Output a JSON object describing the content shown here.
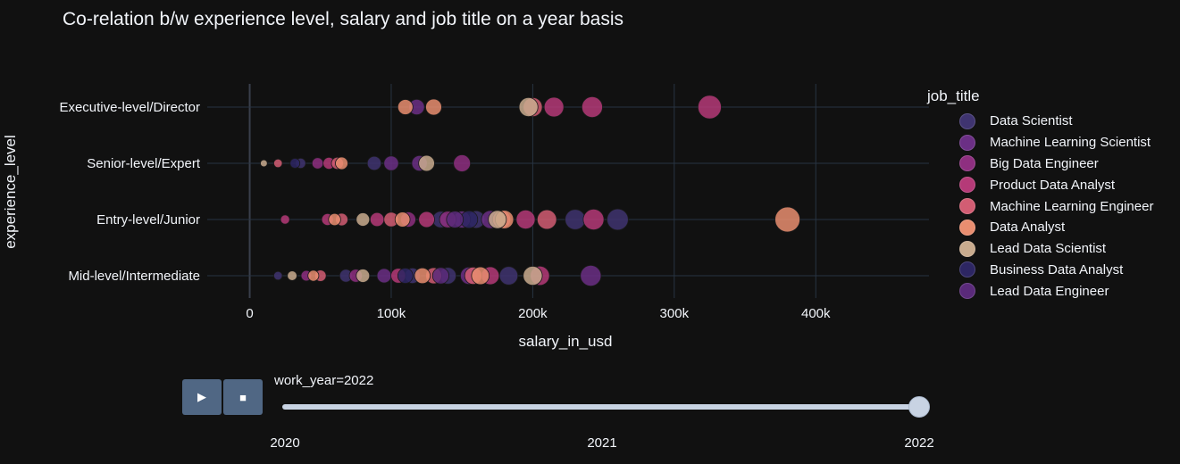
{
  "chart_data": {
    "type": "scatter",
    "title": "Co-relation b/w experience level, salary and job title on a year basis",
    "xlabel": "salary_in_usd",
    "ylabel": "experience_level",
    "xlim": [
      -30000,
      480000
    ],
    "x_ticks": [
      0,
      100000,
      200000,
      300000,
      400000
    ],
    "x_tick_labels": [
      "0",
      "100k",
      "200k",
      "300k",
      "400k"
    ],
    "categories": [
      "Executive-level/Director",
      "Senior-level/Expert",
      "Entry-level/Junior",
      "Mid-level/Intermediate"
    ],
    "grid": true,
    "legend_title": "job_title",
    "legend_position": "right",
    "series": [
      {
        "name": "Data Scientist",
        "color": "#3f3470",
        "points": [
          {
            "x": 36000,
            "y": "Senior-level/Expert"
          },
          {
            "x": 88000,
            "y": "Senior-level/Expert"
          },
          {
            "x": 135000,
            "y": "Entry-level/Junior"
          },
          {
            "x": 160000,
            "y": "Entry-level/Junior"
          },
          {
            "x": 230000,
            "y": "Entry-level/Junior"
          },
          {
            "x": 260000,
            "y": "Entry-level/Junior"
          },
          {
            "x": 20000,
            "y": "Mid-level/Intermediate"
          },
          {
            "x": 68000,
            "y": "Mid-level/Intermediate"
          },
          {
            "x": 115000,
            "y": "Mid-level/Intermediate"
          },
          {
            "x": 140000,
            "y": "Mid-level/Intermediate"
          },
          {
            "x": 183000,
            "y": "Mid-level/Intermediate"
          }
        ]
      },
      {
        "name": "Machine Learning Scientist",
        "color": "#6b2f85",
        "points": [
          {
            "x": 118000,
            "y": "Executive-level/Director"
          },
          {
            "x": 100000,
            "y": "Senior-level/Expert"
          },
          {
            "x": 120000,
            "y": "Senior-level/Expert"
          },
          {
            "x": 150000,
            "y": "Entry-level/Junior"
          },
          {
            "x": 170000,
            "y": "Entry-level/Junior"
          },
          {
            "x": 95000,
            "y": "Mid-level/Intermediate"
          },
          {
            "x": 155000,
            "y": "Mid-level/Intermediate"
          },
          {
            "x": 241000,
            "y": "Mid-level/Intermediate"
          }
        ]
      },
      {
        "name": "Big Data Engineer",
        "color": "#8e2f80",
        "points": [
          {
            "x": 150000,
            "y": "Senior-level/Expert"
          },
          {
            "x": 48000,
            "y": "Senior-level/Expert"
          },
          {
            "x": 112000,
            "y": "Entry-level/Junior"
          },
          {
            "x": 140000,
            "y": "Entry-level/Junior"
          },
          {
            "x": 40000,
            "y": "Mid-level/Intermediate"
          },
          {
            "x": 75000,
            "y": "Mid-level/Intermediate"
          }
        ]
      },
      {
        "name": "Product Data Analyst",
        "color": "#b53a78",
        "points": [
          {
            "x": 242000,
            "y": "Executive-level/Director"
          },
          {
            "x": 325000,
            "y": "Executive-level/Director"
          },
          {
            "x": 215000,
            "y": "Executive-level/Director"
          },
          {
            "x": 25000,
            "y": "Entry-level/Junior"
          },
          {
            "x": 55000,
            "y": "Entry-level/Junior"
          },
          {
            "x": 90000,
            "y": "Entry-level/Junior"
          },
          {
            "x": 125000,
            "y": "Entry-level/Junior"
          },
          {
            "x": 195000,
            "y": "Entry-level/Junior"
          },
          {
            "x": 243000,
            "y": "Entry-level/Junior"
          },
          {
            "x": 56000,
            "y": "Senior-level/Expert"
          },
          {
            "x": 105000,
            "y": "Mid-level/Intermediate"
          },
          {
            "x": 170000,
            "y": "Mid-level/Intermediate"
          },
          {
            "x": 205000,
            "y": "Mid-level/Intermediate"
          }
        ]
      },
      {
        "name": "Machine Learning Engineer",
        "color": "#d25d73",
        "points": [
          {
            "x": 200000,
            "y": "Executive-level/Director"
          },
          {
            "x": 20000,
            "y": "Senior-level/Expert"
          },
          {
            "x": 62000,
            "y": "Senior-level/Expert"
          },
          {
            "x": 65000,
            "y": "Entry-level/Junior"
          },
          {
            "x": 100000,
            "y": "Entry-level/Junior"
          },
          {
            "x": 178000,
            "y": "Entry-level/Junior"
          },
          {
            "x": 210000,
            "y": "Entry-level/Junior"
          },
          {
            "x": 50000,
            "y": "Mid-level/Intermediate"
          },
          {
            "x": 130000,
            "y": "Mid-level/Intermediate"
          },
          {
            "x": 158000,
            "y": "Mid-level/Intermediate"
          }
        ]
      },
      {
        "name": "Data Analyst",
        "color": "#e98e70",
        "points": [
          {
            "x": 110000,
            "y": "Executive-level/Director"
          },
          {
            "x": 130000,
            "y": "Executive-level/Director"
          },
          {
            "x": 65000,
            "y": "Senior-level/Expert"
          },
          {
            "x": 60000,
            "y": "Entry-level/Junior"
          },
          {
            "x": 108000,
            "y": "Entry-level/Junior"
          },
          {
            "x": 180000,
            "y": "Entry-level/Junior"
          },
          {
            "x": 380000,
            "y": "Entry-level/Junior"
          },
          {
            "x": 45000,
            "y": "Mid-level/Intermediate"
          },
          {
            "x": 122000,
            "y": "Mid-level/Intermediate"
          },
          {
            "x": 163000,
            "y": "Mid-level/Intermediate"
          }
        ]
      },
      {
        "name": "Lead Data Scientist",
        "color": "#c9ab8e",
        "points": [
          {
            "x": 197000,
            "y": "Executive-level/Director"
          },
          {
            "x": 125000,
            "y": "Senior-level/Expert"
          },
          {
            "x": 10000,
            "y": "Senior-level/Expert"
          },
          {
            "x": 80000,
            "y": "Entry-level/Junior"
          },
          {
            "x": 175000,
            "y": "Entry-level/Junior"
          },
          {
            "x": 30000,
            "y": "Mid-level/Intermediate"
          },
          {
            "x": 80000,
            "y": "Mid-level/Intermediate"
          },
          {
            "x": 200000,
            "y": "Mid-level/Intermediate"
          }
        ]
      },
      {
        "name": "Business Data Analyst",
        "color": "#2d2663",
        "points": [
          {
            "x": 32000,
            "y": "Senior-level/Expert"
          },
          {
            "x": 155000,
            "y": "Entry-level/Junior"
          },
          {
            "x": 110000,
            "y": "Mid-level/Intermediate"
          }
        ]
      },
      {
        "name": "Lead Data Engineer",
        "color": "#5a2a7a",
        "points": [
          {
            "x": 145000,
            "y": "Entry-level/Junior"
          },
          {
            "x": 135000,
            "y": "Mid-level/Intermediate"
          }
        ]
      }
    ]
  },
  "slider": {
    "current_label": "work_year=2022",
    "steps": [
      "2020",
      "2021",
      "2022"
    ],
    "active": "2022"
  },
  "controls": {
    "play_icon": "play-icon",
    "stop_icon": "stop-icon"
  }
}
